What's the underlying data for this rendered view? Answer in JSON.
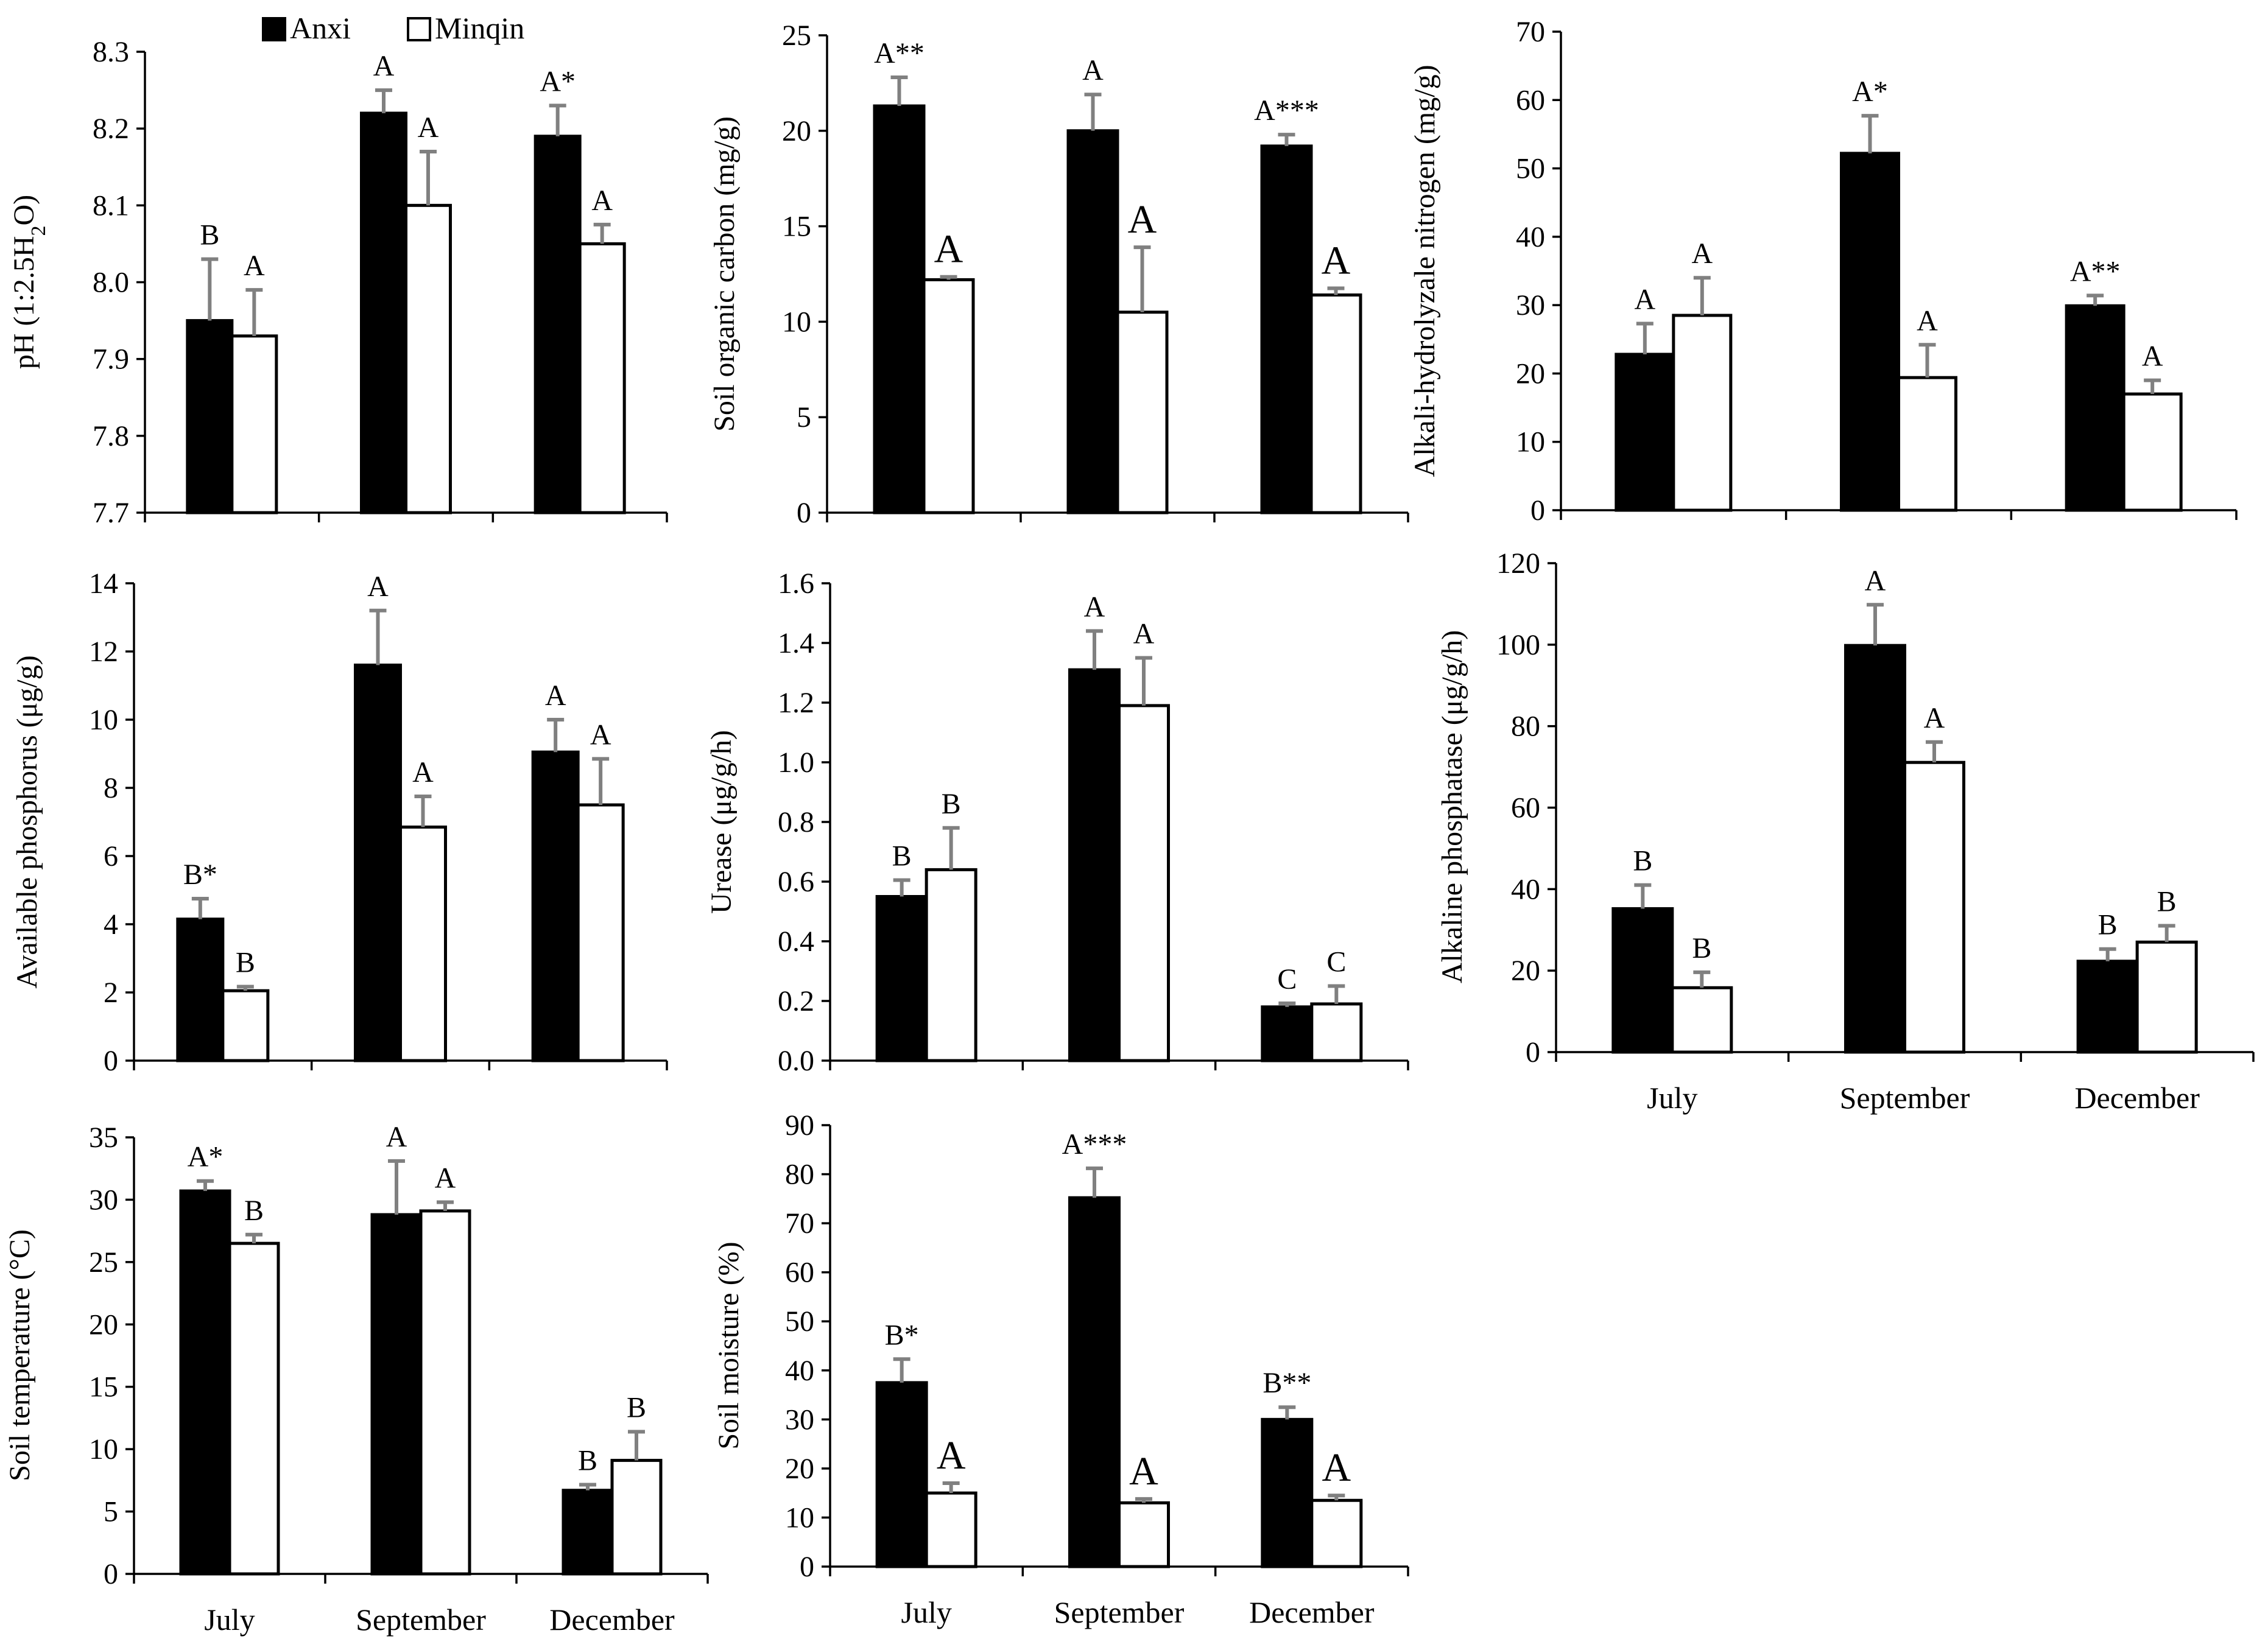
{
  "legend": {
    "series": [
      {
        "name": "Anxi",
        "color": "#000000"
      },
      {
        "name": "Minqin",
        "color": "#ffffff"
      }
    ]
  },
  "chart_data": [
    {
      "type": "bar",
      "categories": [
        "July",
        "September",
        "December"
      ],
      "ylabel": "pH (1:2.5H2O)",
      "ylim": [
        7.7,
        8.3
      ],
      "ticks": [
        "7.7",
        "7.8",
        "7.9",
        "8.0",
        "8.1",
        "8.2",
        "8.3"
      ],
      "series": [
        {
          "name": "Anxi",
          "values": [
            7.95,
            8.22,
            8.19
          ],
          "errors": [
            0.08,
            0.03,
            0.04
          ],
          "labels": [
            "B",
            "A",
            "A*"
          ]
        },
        {
          "name": "Minqin",
          "values": [
            7.93,
            8.1,
            8.05
          ],
          "errors": [
            0.06,
            0.07,
            0.025
          ],
          "labels": [
            "A",
            "A",
            "A"
          ]
        }
      ]
    },
    {
      "type": "bar",
      "categories": [
        "July",
        "September",
        "December"
      ],
      "ylabel": "Soil organic carbon (mg/g)",
      "ylim": [
        0,
        25
      ],
      "ticks": [
        "0",
        "5",
        "10",
        "15",
        "20",
        "25"
      ],
      "series": [
        {
          "name": "Anxi",
          "values": [
            21.3,
            20.0,
            19.2
          ],
          "errors": [
            1.5,
            1.9,
            0.6
          ],
          "labels": [
            "A**",
            "A",
            "A***"
          ]
        },
        {
          "name": "Minqin",
          "values": [
            12.2,
            10.5,
            11.4
          ],
          "errors": [
            0.15,
            3.4,
            0.35
          ],
          "labels": [
            "A",
            "A",
            "A"
          ]
        }
      ]
    },
    {
      "type": "bar",
      "categories": [
        "July",
        "September",
        "December"
      ],
      "ylabel": "Alkali-hydrolyzale nitrogen (mg/g)",
      "ylim": [
        0,
        70
      ],
      "ticks": [
        "0",
        "10",
        "20",
        "30",
        "40",
        "50",
        "60",
        "70"
      ],
      "series": [
        {
          "name": "Anxi",
          "values": [
            22.8,
            52.2,
            29.9
          ],
          "errors": [
            4.5,
            5.5,
            1.5
          ],
          "labels": [
            "A",
            "A*",
            "A**"
          ]
        },
        {
          "name": "Minqin",
          "values": [
            28.5,
            19.4,
            17.0
          ],
          "errors": [
            5.5,
            4.8,
            2.0
          ],
          "labels": [
            "A",
            "A",
            "A"
          ]
        }
      ]
    },
    {
      "type": "bar",
      "categories": [
        "July",
        "September",
        "December"
      ],
      "ylabel": "Available phosphorus (μg/g)",
      "ylim": [
        0,
        14
      ],
      "ticks": [
        "0",
        "2",
        "4",
        "6",
        "8",
        "10",
        "12",
        "14"
      ],
      "series": [
        {
          "name": "Anxi",
          "values": [
            4.15,
            11.6,
            9.05
          ],
          "errors": [
            0.6,
            1.6,
            0.95
          ],
          "labels": [
            "B*",
            "A",
            "A"
          ]
        },
        {
          "name": "Minqin",
          "values": [
            2.05,
            6.85,
            7.5
          ],
          "errors": [
            0.12,
            0.9,
            1.35
          ],
          "labels": [
            "B",
            "A",
            "A"
          ]
        }
      ]
    },
    {
      "type": "bar",
      "categories": [
        "July",
        "September",
        "December"
      ],
      "ylabel": "Urease (μg/g/h)",
      "ylim": [
        0,
        1.6
      ],
      "ticks": [
        "0.0",
        "0.2",
        "0.4",
        "0.6",
        "0.8",
        "1.0",
        "1.2",
        "1.4",
        "1.6"
      ],
      "series": [
        {
          "name": "Anxi",
          "values": [
            0.55,
            1.31,
            0.18
          ],
          "errors": [
            0.055,
            0.13,
            0.012
          ],
          "labels": [
            "B",
            "A",
            "C"
          ]
        },
        {
          "name": "Minqin",
          "values": [
            0.64,
            1.19,
            0.19
          ],
          "errors": [
            0.14,
            0.16,
            0.06
          ],
          "labels": [
            "B",
            "A",
            "C"
          ]
        }
      ]
    },
    {
      "type": "bar",
      "categories": [
        "July",
        "September",
        "December"
      ],
      "ylabel": "Alkaline phosphatase (μg/g/h)",
      "ylim": [
        0,
        120
      ],
      "ticks": [
        "0",
        "20",
        "40",
        "60",
        "80",
        "100",
        "120"
      ],
      "series": [
        {
          "name": "Anxi",
          "values": [
            35.2,
            99.8,
            22.3
          ],
          "errors": [
            5.8,
            10.0,
            3.0
          ],
          "labels": [
            "B",
            "A",
            "B"
          ]
        },
        {
          "name": "Minqin",
          "values": [
            15.8,
            71.1,
            27.0
          ],
          "errors": [
            3.8,
            5.0,
            4.0
          ],
          "labels": [
            "B",
            "A",
            "B"
          ]
        }
      ]
    },
    {
      "type": "bar",
      "categories": [
        "July",
        "September",
        "December"
      ],
      "ylabel": "Soil temperature (°C)",
      "ylim": [
        0,
        35
      ],
      "ticks": [
        "0",
        "5",
        "10",
        "15",
        "20",
        "25",
        "30",
        "35"
      ],
      "series": [
        {
          "name": "Anxi",
          "values": [
            30.7,
            28.8,
            6.7
          ],
          "errors": [
            0.8,
            4.3,
            0.45
          ],
          "labels": [
            "A*",
            "A",
            "B"
          ]
        },
        {
          "name": "Minqin",
          "values": [
            26.5,
            29.1,
            9.1
          ],
          "errors": [
            0.7,
            0.7,
            2.3
          ],
          "labels": [
            "B",
            "A",
            "B"
          ]
        }
      ]
    },
    {
      "type": "bar",
      "categories": [
        "July",
        "September",
        "December"
      ],
      "ylabel": "Soil moisture (%)",
      "ylim": [
        0,
        90
      ],
      "ticks": [
        "0",
        "10",
        "20",
        "30",
        "40",
        "50",
        "60",
        "70",
        "80",
        "90"
      ],
      "series": [
        {
          "name": "Anxi",
          "values": [
            37.5,
            75.2,
            30.0
          ],
          "errors": [
            4.8,
            6.0,
            2.5
          ],
          "labels": [
            "B*",
            "A***",
            "B**"
          ]
        },
        {
          "name": "Minqin",
          "values": [
            15.0,
            13.0,
            13.5
          ],
          "errors": [
            2.0,
            0.8,
            1.0
          ],
          "labels": [
            "A",
            "A",
            "A"
          ]
        }
      ]
    }
  ]
}
